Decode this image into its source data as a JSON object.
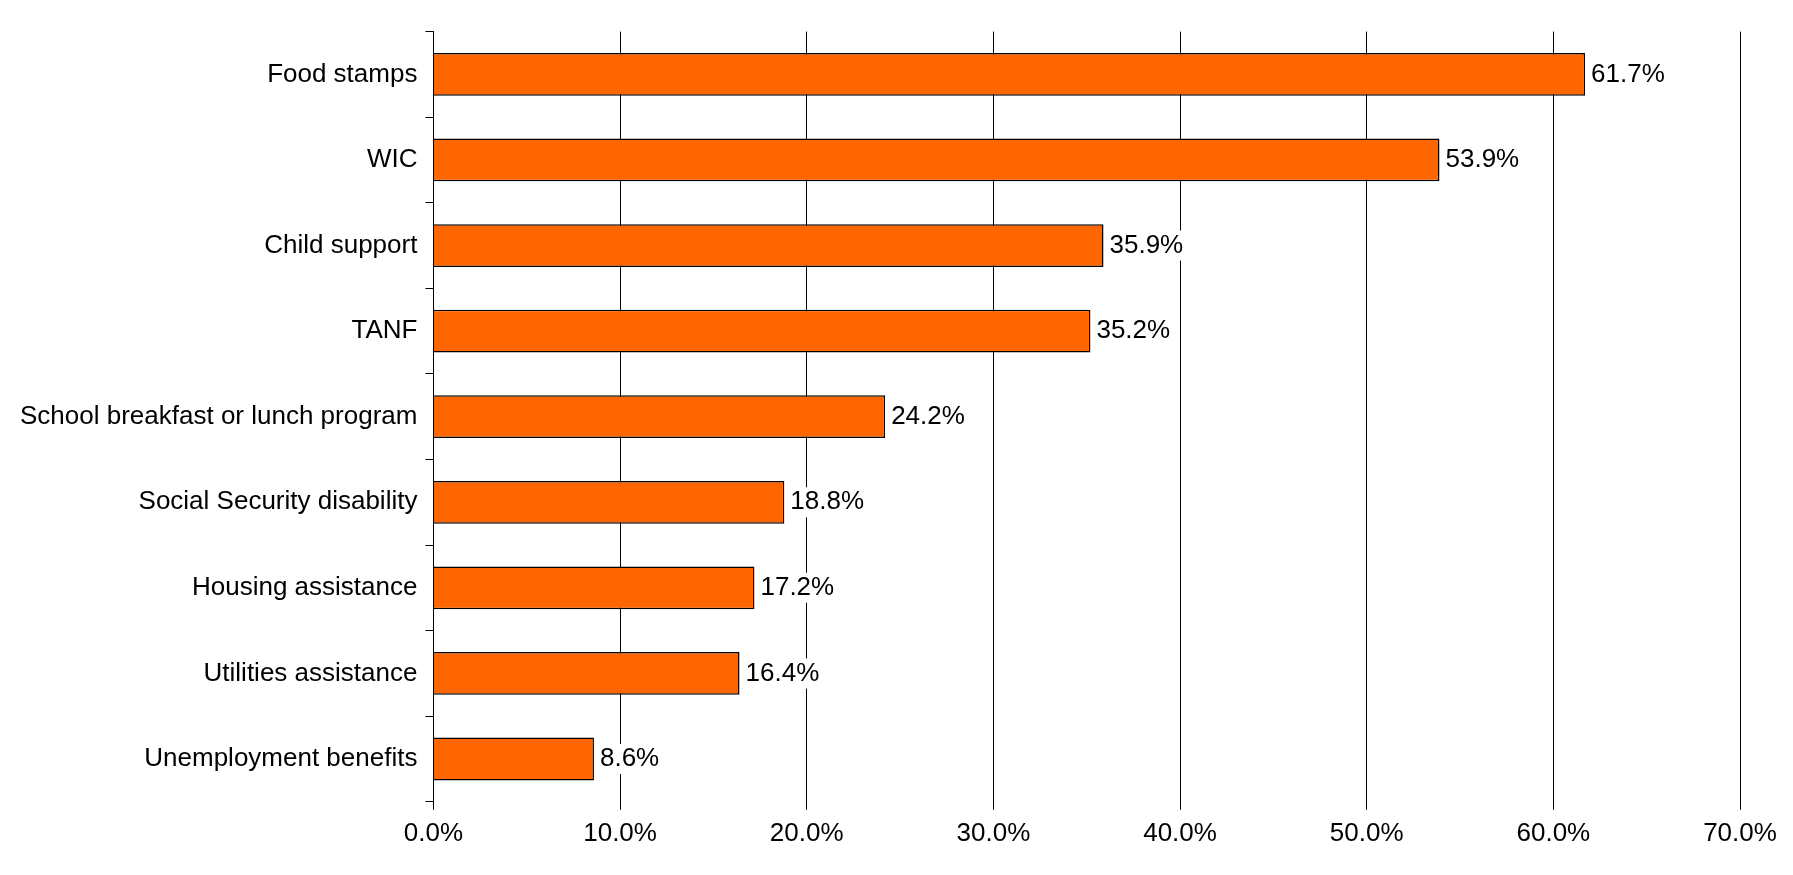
{
  "chart_data": {
    "type": "bar",
    "orientation": "horizontal",
    "categories": [
      "Food stamps",
      "WIC",
      "Child support",
      "TANF",
      "School breakfast or lunch program",
      "Social Security disability",
      "Housing assistance",
      "Utilities assistance",
      "Unemployment benefits"
    ],
    "values": [
      61.7,
      53.9,
      35.9,
      35.2,
      24.2,
      18.8,
      17.2,
      16.4,
      8.6
    ],
    "value_labels": [
      "61.7%",
      "53.9%",
      "35.9%",
      "35.2%",
      "24.2%",
      "18.8%",
      "17.2%",
      "16.4%",
      "8.6%"
    ],
    "color": "#ff6600",
    "xlim": [
      0,
      70
    ],
    "xticks": [
      {
        "value": 0,
        "label": "0.0%"
      },
      {
        "value": 10,
        "label": "10.0%"
      },
      {
        "value": 20,
        "label": "20.0%"
      },
      {
        "value": 30,
        "label": "30.0%"
      },
      {
        "value": 40,
        "label": "40.0%"
      },
      {
        "value": 50,
        "label": "50.0%"
      },
      {
        "value": 60,
        "label": "60.0%"
      },
      {
        "value": 70,
        "label": "70.0%"
      }
    ],
    "grid": "x",
    "legend": false
  }
}
